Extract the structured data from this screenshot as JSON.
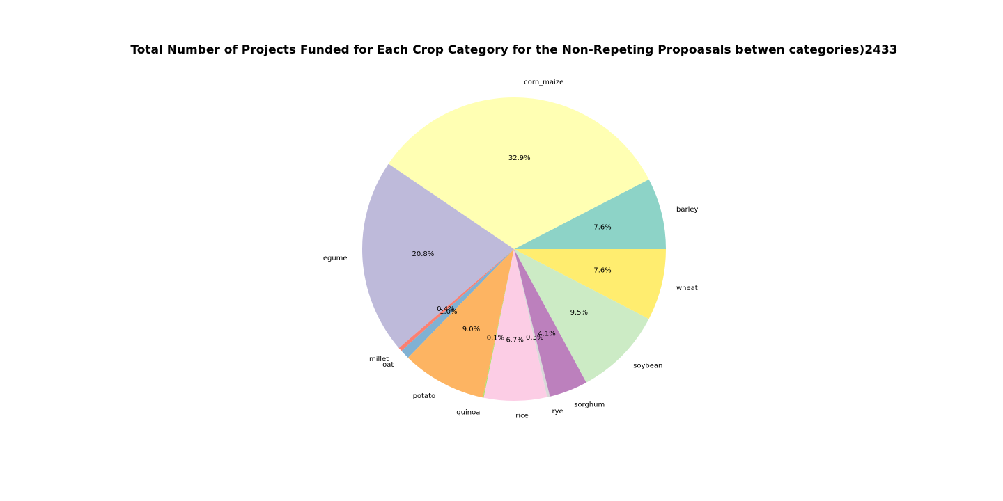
{
  "chart_data": {
    "type": "pie",
    "title": "Total Number of Projects Funded for Each Crop Category for the Non-Repeting Propoasals betwen categories)2433",
    "slices": [
      {
        "label": "barley",
        "pct": 7.6,
        "pct_label": "7.6%",
        "color": "#8dd3c7"
      },
      {
        "label": "corn_maize",
        "pct": 32.9,
        "pct_label": "32.9%",
        "color": "#ffffb3"
      },
      {
        "label": "legume",
        "pct": 20.8,
        "pct_label": "20.8%",
        "color": "#bebada"
      },
      {
        "label": "millet",
        "pct": 0.4,
        "pct_label": "0.4%",
        "color": "#fb8072"
      },
      {
        "label": "oat",
        "pct": 1.0,
        "pct_label": "1.0%",
        "color": "#80b1d3"
      },
      {
        "label": "potato",
        "pct": 9.0,
        "pct_label": "9.0%",
        "color": "#fdb462"
      },
      {
        "label": "quinoa",
        "pct": 0.1,
        "pct_label": "0.1%",
        "color": "#b3de69"
      },
      {
        "label": "rice",
        "pct": 6.7,
        "pct_label": "6.7%",
        "color": "#fccde5"
      },
      {
        "label": "rye",
        "pct": 0.3,
        "pct_label": "0.3%",
        "color": "#d9d9d9"
      },
      {
        "label": "sorghum",
        "pct": 4.1,
        "pct_label": "4.1%",
        "color": "#bc80bd"
      },
      {
        "label": "soybean",
        "pct": 9.5,
        "pct_label": "9.5%",
        "color": "#ccebc5"
      },
      {
        "label": "wheat",
        "pct": 7.6,
        "pct_label": "7.6%",
        "color": "#ffed6f"
      }
    ]
  }
}
